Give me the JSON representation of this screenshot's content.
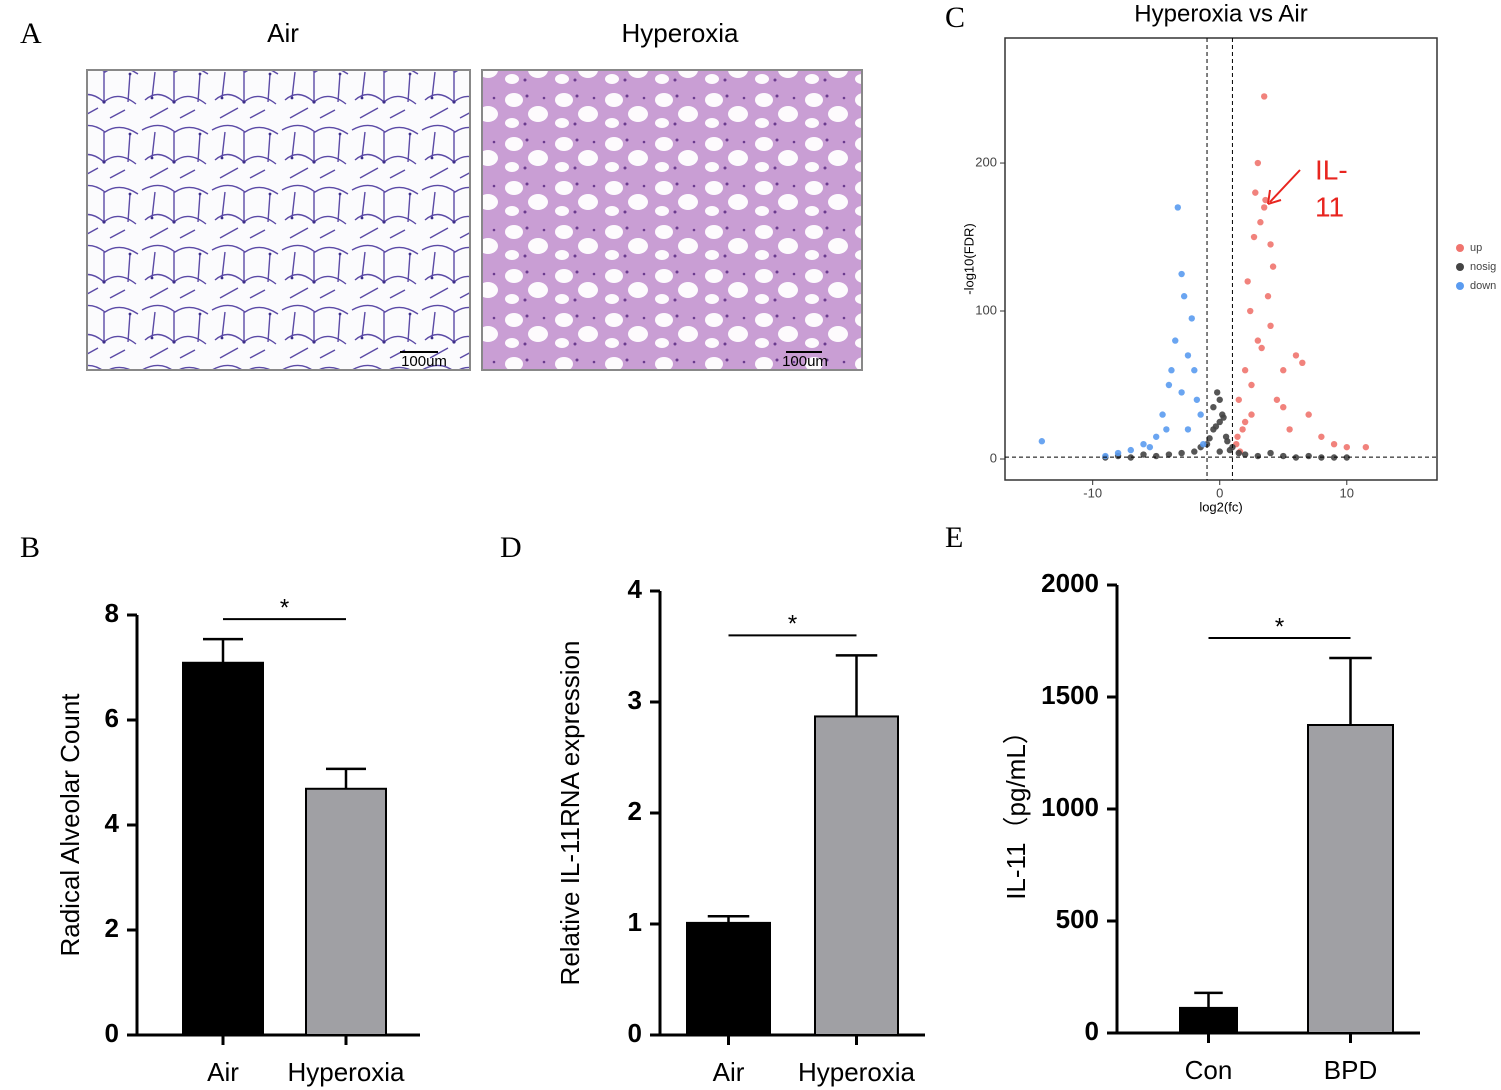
{
  "histology": {
    "label": "A",
    "images": [
      {
        "title": "Air",
        "scale_bar": "100um"
      },
      {
        "title": "Hyperoxia",
        "scale_bar": "100um"
      }
    ]
  },
  "chart_data": [
    {
      "type": "scatter",
      "label": "C",
      "title": "Hyperoxia vs Air",
      "xlabel": "log2(fc)",
      "ylabel": "-log10(FDR)",
      "xlim": [
        -16.9,
        17.1
      ],
      "xticks": [
        -10,
        0,
        10
      ],
      "ylim": [
        -14.2,
        284.5
      ],
      "yticks": [
        0,
        100,
        200
      ],
      "vlines": [
        -1,
        1
      ],
      "hline": 1.3,
      "annotation": [
        "IL-",
        "11"
      ],
      "series": [
        {
          "name": "up",
          "color": "#f0746e",
          "x": [
            1.5,
            2,
            2.5,
            3,
            3.5,
            4,
            4.5,
            5,
            5.5,
            6,
            7,
            8,
            9,
            10,
            11.5,
            1.8,
            2.2,
            2.8,
            3.2,
            3.8,
            4.2,
            2.5,
            3,
            3.5,
            4,
            1.3,
            1.6,
            2,
            2.4,
            5,
            6.5,
            3.6,
            2.7,
            3.3,
            1.4
          ],
          "values": [
            40,
            60,
            30,
            80,
            170,
            90,
            40,
            60,
            20,
            70,
            30,
            15,
            10,
            8,
            8,
            20,
            120,
            180,
            160,
            110,
            130,
            50,
            200,
            245,
            145,
            10,
            5,
            25,
            100,
            35,
            65,
            175,
            150,
            75,
            15
          ]
        },
        {
          "name": "nosig",
          "color": "#444444",
          "x": [
            -9,
            -8,
            -7,
            -6,
            -5,
            -4,
            -3,
            -2,
            -1.5,
            -1,
            -0.5,
            0,
            0.5,
            1,
            1.5,
            2,
            3,
            4,
            5,
            6,
            7,
            8,
            9,
            10,
            -0.5,
            0,
            0.3,
            -0.3,
            0.6,
            -0.8,
            0.8,
            0,
            -0.2,
            0.2
          ],
          "values": [
            1,
            2,
            1,
            3,
            2,
            3,
            4,
            5,
            8,
            10,
            20,
            25,
            15,
            8,
            4,
            3,
            2,
            4,
            2,
            1,
            2,
            1,
            1,
            1,
            35,
            40,
            28,
            22,
            12,
            14,
            6,
            5,
            45,
            30
          ]
        },
        {
          "name": "down",
          "color": "#5a9bf0",
          "x": [
            -1.5,
            -2,
            -2.5,
            -3,
            -3.5,
            -4,
            -4.5,
            -5,
            -6,
            -7,
            -8,
            -9,
            -14,
            -2.2,
            -2.8,
            -3.3,
            -3.8,
            -1.8,
            -2.5,
            -3,
            -4.2,
            -1.3,
            -5.5
          ],
          "values": [
            30,
            60,
            20,
            125,
            80,
            50,
            30,
            15,
            10,
            6,
            4,
            2,
            12,
            95,
            110,
            170,
            60,
            40,
            70,
            45,
            20,
            10,
            8
          ]
        }
      ]
    },
    {
      "type": "bar",
      "label": "B",
      "ylabel": "Radical Alveolar Count",
      "categories": [
        "Air",
        "Hyperoxia"
      ],
      "values": [
        7.09,
        4.69
      ],
      "errors": [
        0.45,
        0.38
      ],
      "colors": [
        "#000000",
        "#a0a0a4"
      ],
      "ylim": [
        0,
        8
      ],
      "yticks": [
        0,
        2,
        4,
        6,
        8
      ],
      "significance": "*"
    },
    {
      "type": "bar",
      "label": "D",
      "ylabel": "Relative IL-11RNA expression",
      "categories": [
        "Air",
        "Hyperoxia"
      ],
      "values": [
        1.01,
        2.87
      ],
      "errors": [
        0.06,
        0.55
      ],
      "colors": [
        "#000000",
        "#a0a0a4"
      ],
      "ylim": [
        0,
        4
      ],
      "yticks": [
        0,
        1,
        2,
        3,
        4
      ],
      "significance": "*"
    },
    {
      "type": "bar",
      "label": "E",
      "ylabel": "IL-11（pg/mL）",
      "categories": [
        "Con",
        "BPD"
      ],
      "values": [
        112,
        1375
      ],
      "errors": [
        67,
        299
      ],
      "colors": [
        "#000000",
        "#a0a0a4"
      ],
      "ylim": [
        0,
        2000
      ],
      "yticks": [
        0,
        500,
        1000,
        1500,
        2000
      ],
      "significance": "*"
    }
  ]
}
